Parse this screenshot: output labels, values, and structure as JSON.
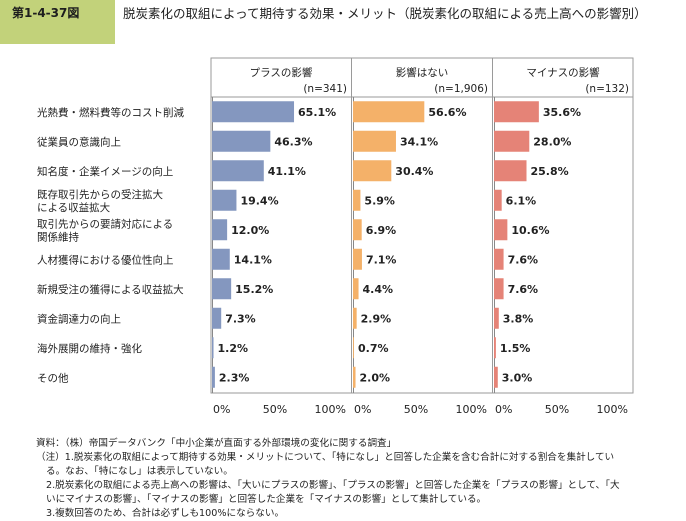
{
  "header": {
    "figure_id": "第1-4-37図",
    "title": "脱炭素化の取組によって期待する効果・メリット（脱炭素化の取組による売上高への影響別）"
  },
  "colors": {
    "plus": "#8497bf",
    "none": "#f4b169",
    "minus": "#e58377",
    "axis": "#888888",
    "box": "#9a9a9a"
  },
  "chart_data": {
    "type": "bar",
    "orientation": "horizontal",
    "categories": [
      [
        "光熱費・燃料費等のコスト削減"
      ],
      [
        "従業員の意識向上"
      ],
      [
        "知名度・企業イメージの向上"
      ],
      [
        "既存取引先からの受注拡大",
        "による収益拡大"
      ],
      [
        "取引先からの要請対応による",
        "関係維持"
      ],
      [
        "人材獲得における優位性向上"
      ],
      [
        "新規受注の獲得による収益拡大"
      ],
      [
        "資金調達力の向上"
      ],
      [
        "海外展開の維持・強化"
      ],
      [
        "その他"
      ]
    ],
    "series": [
      {
        "name": "プラスの影響",
        "n_label": "(n=341)",
        "values": [
          65.1,
          46.3,
          41.1,
          19.4,
          12.0,
          14.1,
          15.2,
          7.3,
          1.2,
          2.3
        ]
      },
      {
        "name": "影響はない",
        "n_label": "(n=1,906)",
        "values": [
          56.6,
          34.1,
          30.4,
          5.9,
          6.9,
          7.1,
          4.4,
          2.9,
          0.7,
          2.0
        ]
      },
      {
        "name": "マイナスの影響",
        "n_label": "(n=132)",
        "values": [
          35.6,
          28.0,
          25.8,
          6.1,
          10.6,
          7.6,
          7.6,
          3.8,
          1.5,
          3.0
        ]
      }
    ],
    "xlim": [
      0,
      100
    ],
    "xticks": [
      "0%",
      "50%",
      "100%"
    ],
    "value_suffix": "%"
  },
  "notes": [
    "資料：（株）帝国データバンク「中小企業が直面する外部環境の変化に関する調査」",
    "（注）1.脱炭素化の取組によって期待する効果・メリットについて、「特になし」と回答した企業を含む合計に対する割合を集計してい",
    "る。なお、「特になし」は表示していない。",
    "2.脱炭素化の取組による売上高への影響は、「大いにプラスの影響」、「プラスの影響」と回答した企業を「プラスの影響」として、「大",
    "いにマイナスの影響」、「マイナスの影響」と回答した企業を「マイナスの影響」として集計している。",
    "3.複数回答のため、合計は必ずしも100%にならない。"
  ]
}
